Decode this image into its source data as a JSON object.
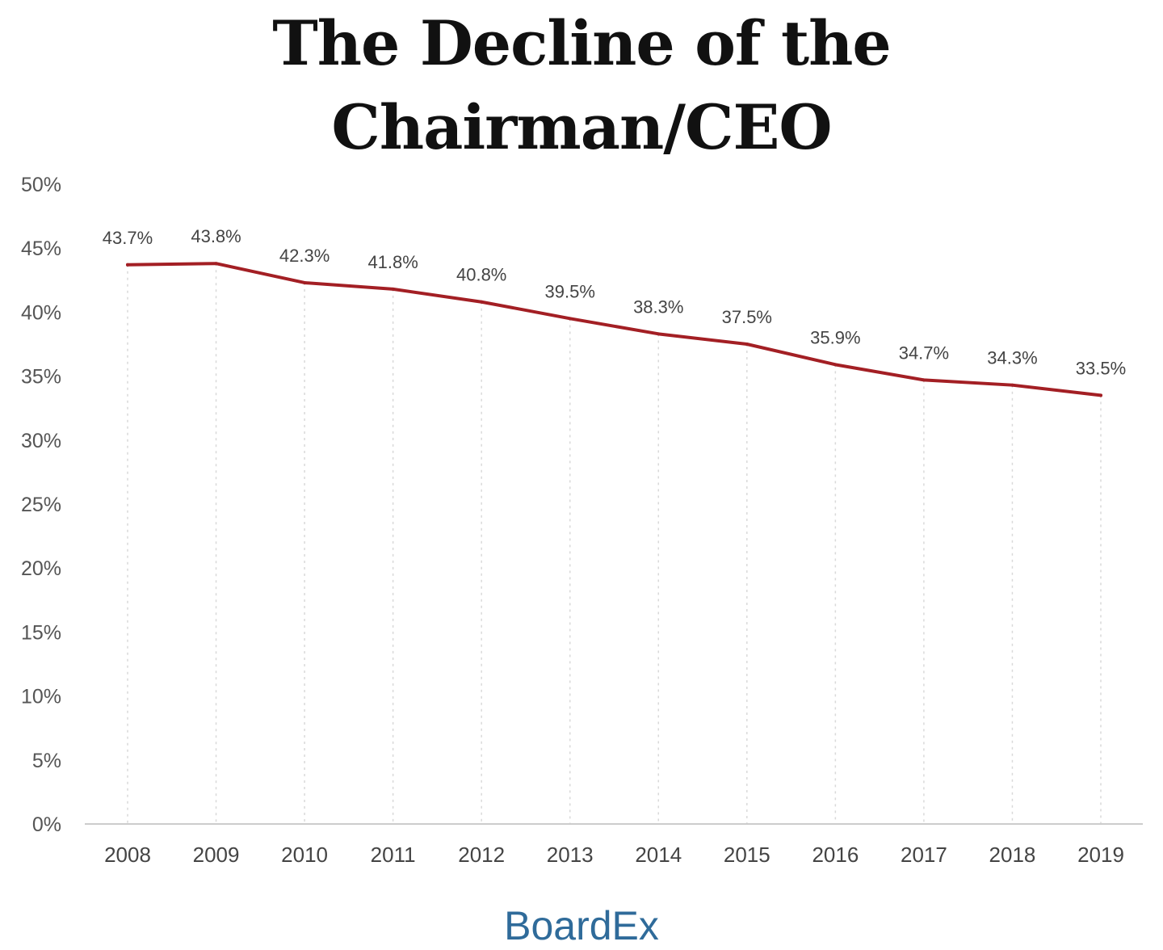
{
  "title_line1": "The Decline of the",
  "title_line2": "Chairman/CEO",
  "brand": "BoardEx",
  "colors": {
    "line": "#a31f24",
    "grid": "#d9d9d9",
    "brand": "#2f6b9a"
  },
  "chart_data": {
    "type": "line",
    "title": "The Decline of the Chairman/CEO",
    "categories": [
      "2008",
      "2009",
      "2010",
      "2011",
      "2012",
      "2013",
      "2014",
      "2015",
      "2016",
      "2017",
      "2018",
      "2019"
    ],
    "series": [
      {
        "values": [
          43.7,
          43.8,
          42.3,
          41.8,
          40.8,
          39.5,
          38.3,
          37.5,
          35.9,
          34.7,
          34.3,
          33.5
        ]
      }
    ],
    "data_labels": [
      "43.7%",
      "43.8%",
      "42.3%",
      "41.8%",
      "40.8%",
      "39.5%",
      "38.3%",
      "37.5%",
      "35.9%",
      "34.7%",
      "34.3%",
      "33.5%"
    ],
    "y_ticks": [
      "0%",
      "5%",
      "10%",
      "15%",
      "20%",
      "25%",
      "30%",
      "35%",
      "40%",
      "45%",
      "50%"
    ],
    "ylim": [
      0,
      50
    ],
    "xlabel": "",
    "ylabel": "",
    "grid": "vertical dotted",
    "legend": "none"
  }
}
